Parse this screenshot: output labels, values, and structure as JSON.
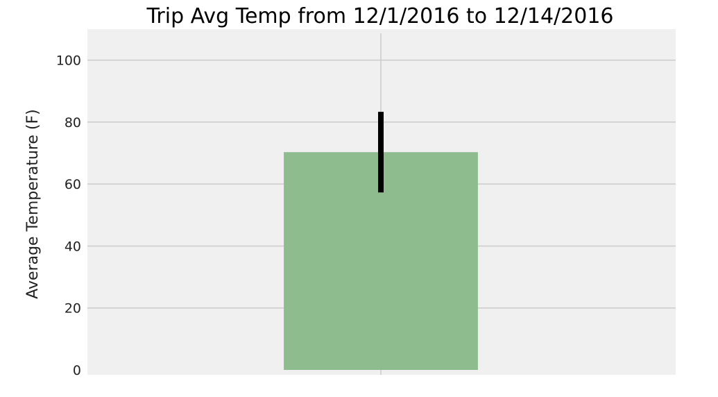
{
  "chart_data": {
    "type": "bar",
    "title": "Trip Avg Temp from 12/1/2016 to 12/14/2016",
    "xlabel": "",
    "ylabel": "Average Temperature (F)",
    "ylim": [
      0,
      110
    ],
    "yticks": [
      "0",
      "20",
      "40",
      "60",
      "80",
      "100"
    ],
    "yticks_values": [
      0,
      20,
      40,
      60,
      80,
      100
    ],
    "categories": [
      ""
    ],
    "values": [
      70.3
    ],
    "error": [
      13
    ],
    "grid": true,
    "bar_color": "#8fbc8f",
    "error_color": "#000000",
    "background_color": "#f0f0f0",
    "grid_color": "#cbcbcb"
  }
}
